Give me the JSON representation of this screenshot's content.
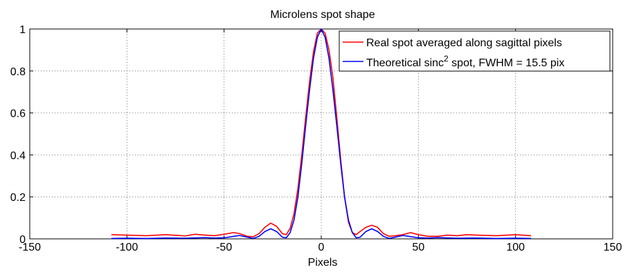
{
  "chart_data": {
    "type": "line",
    "title": "Microlens spot shape",
    "xlabel": "Pixels",
    "ylabel": "",
    "xlim": [
      -150,
      150
    ],
    "ylim": [
      0,
      1
    ],
    "x_ticks": [
      "-150",
      "-100",
      "-50",
      "0",
      "50",
      "100",
      "150"
    ],
    "y_ticks": [
      "0",
      "0.2",
      "0.4",
      "0.6",
      "0.8",
      "1"
    ],
    "grid": "dotted",
    "legend_position": "top-right",
    "legend": {
      "real": "Real spot averaged along sagittal pixels",
      "theory_prefix": "Theoretical sinc",
      "theory_sup": "2",
      "theory_suffix": " spot, FWHM = 15.5 pix"
    },
    "series": [
      {
        "name": "Real spot averaged along sagittal pixels",
        "color": "#ff0000",
        "points": [
          [
            -108,
            0.02
          ],
          [
            -100,
            0.018
          ],
          [
            -90,
            0.015
          ],
          [
            -80,
            0.02
          ],
          [
            -70,
            0.014
          ],
          [
            -65,
            0.022
          ],
          [
            -60,
            0.018
          ],
          [
            -55,
            0.015
          ],
          [
            -50,
            0.022
          ],
          [
            -45,
            0.03
          ],
          [
            -42,
            0.025
          ],
          [
            -38,
            0.012
          ],
          [
            -35,
            0.01
          ],
          [
            -32,
            0.025
          ],
          [
            -29,
            0.055
          ],
          [
            -26,
            0.075
          ],
          [
            -23,
            0.06
          ],
          [
            -20,
            0.025
          ],
          [
            -18,
            0.02
          ],
          [
            -16,
            0.05
          ],
          [
            -14,
            0.12
          ],
          [
            -12,
            0.24
          ],
          [
            -10,
            0.4
          ],
          [
            -8,
            0.58
          ],
          [
            -6,
            0.75
          ],
          [
            -4,
            0.89
          ],
          [
            -2,
            0.98
          ],
          [
            0,
            1.0
          ],
          [
            2,
            0.98
          ],
          [
            4,
            0.9
          ],
          [
            6,
            0.77
          ],
          [
            8,
            0.58
          ],
          [
            10,
            0.38
          ],
          [
            12,
            0.2
          ],
          [
            14,
            0.08
          ],
          [
            16,
            0.03
          ],
          [
            18,
            0.02
          ],
          [
            20,
            0.035
          ],
          [
            23,
            0.055
          ],
          [
            26,
            0.065
          ],
          [
            29,
            0.055
          ],
          [
            32,
            0.025
          ],
          [
            35,
            0.012
          ],
          [
            38,
            0.015
          ],
          [
            42,
            0.02
          ],
          [
            46,
            0.03
          ],
          [
            50,
            0.02
          ],
          [
            55,
            0.012
          ],
          [
            60,
            0.012
          ],
          [
            65,
            0.018
          ],
          [
            70,
            0.015
          ],
          [
            75,
            0.02
          ],
          [
            80,
            0.018
          ],
          [
            90,
            0.015
          ],
          [
            100,
            0.02
          ],
          [
            108,
            0.015
          ]
        ]
      },
      {
        "name": "Theoretical sinc² spot, FWHM = 15.5 pix",
        "color": "#0000ff",
        "points": [
          [
            -108,
            0.002
          ],
          [
            -100,
            0.003
          ],
          [
            -90,
            0.002
          ],
          [
            -80,
            0.004
          ],
          [
            -70,
            0.003
          ],
          [
            -60,
            0.006
          ],
          [
            -55,
            0.004
          ],
          [
            -50,
            0.005
          ],
          [
            -45,
            0.012
          ],
          [
            -42,
            0.016
          ],
          [
            -38,
            0.008
          ],
          [
            -35,
            0.002
          ],
          [
            -32,
            0.012
          ],
          [
            -29,
            0.035
          ],
          [
            -26,
            0.048
          ],
          [
            -23,
            0.035
          ],
          [
            -20,
            0.008
          ],
          [
            -18,
            0.005
          ],
          [
            -16,
            0.03
          ],
          [
            -14,
            0.09
          ],
          [
            -12,
            0.2
          ],
          [
            -10,
            0.36
          ],
          [
            -8,
            0.54
          ],
          [
            -6,
            0.71
          ],
          [
            -4,
            0.86
          ],
          [
            -2,
            0.96
          ],
          [
            0,
            1.0
          ],
          [
            2,
            0.96
          ],
          [
            4,
            0.86
          ],
          [
            6,
            0.71
          ],
          [
            8,
            0.54
          ],
          [
            10,
            0.36
          ],
          [
            12,
            0.2
          ],
          [
            14,
            0.09
          ],
          [
            16,
            0.03
          ],
          [
            18,
            0.005
          ],
          [
            20,
            0.008
          ],
          [
            23,
            0.035
          ],
          [
            26,
            0.048
          ],
          [
            29,
            0.035
          ],
          [
            32,
            0.012
          ],
          [
            35,
            0.002
          ],
          [
            38,
            0.008
          ],
          [
            42,
            0.016
          ],
          [
            45,
            0.012
          ],
          [
            50,
            0.005
          ],
          [
            55,
            0.004
          ],
          [
            60,
            0.006
          ],
          [
            70,
            0.003
          ],
          [
            80,
            0.004
          ],
          [
            90,
            0.002
          ],
          [
            100,
            0.003
          ],
          [
            108,
            0.002
          ]
        ]
      }
    ]
  }
}
